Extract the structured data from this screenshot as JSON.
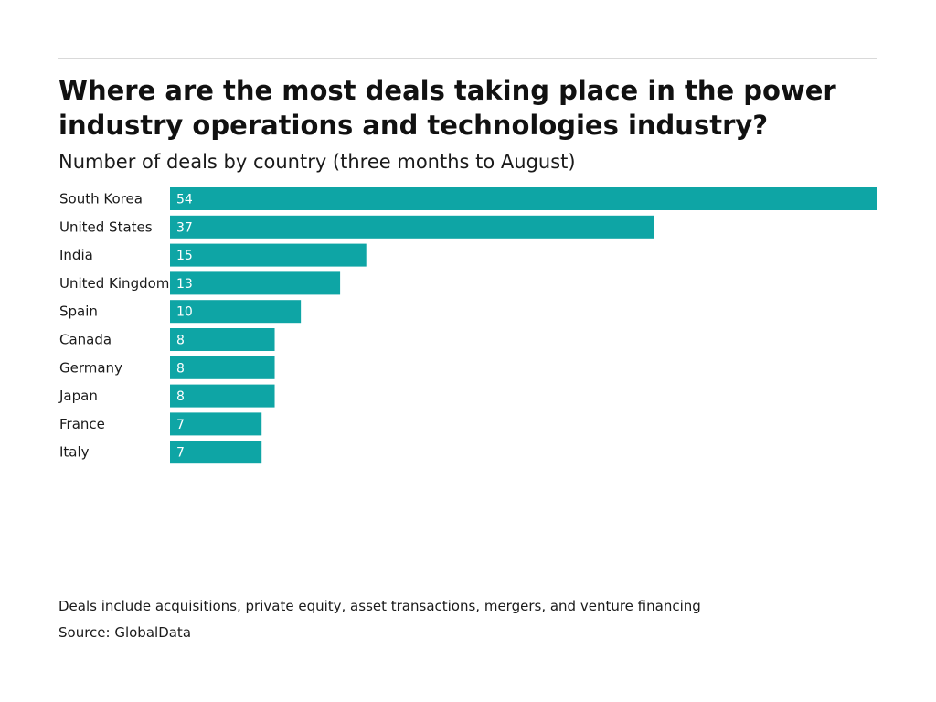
{
  "header": {
    "title": "Where are the most deals taking place in the power industry operations and technologies industry?",
    "subtitle": "Number of deals by country (three months to August)"
  },
  "footer": {
    "note": "Deals include acquisitions, private equity, asset transactions, mergers, and venture financing",
    "source": "Source: GlobalData"
  },
  "chart_data": {
    "type": "bar",
    "orientation": "horizontal",
    "title": "Where are the most deals taking place in the power industry operations and technologies industry?",
    "subtitle": "Number of deals by country (three months to August)",
    "categories": [
      "South Korea",
      "United States",
      "India",
      "United Kingdom",
      "Spain",
      "Canada",
      "Germany",
      "Japan",
      "France",
      "Italy"
    ],
    "values": [
      54,
      37,
      15,
      13,
      10,
      8,
      8,
      8,
      7,
      7
    ],
    "xlabel": "",
    "ylabel": "",
    "xlim": [
      0,
      54
    ],
    "grid": false,
    "legend": "none",
    "bar_color": "#0ea5a5",
    "value_label_color": "#ffffff"
  }
}
